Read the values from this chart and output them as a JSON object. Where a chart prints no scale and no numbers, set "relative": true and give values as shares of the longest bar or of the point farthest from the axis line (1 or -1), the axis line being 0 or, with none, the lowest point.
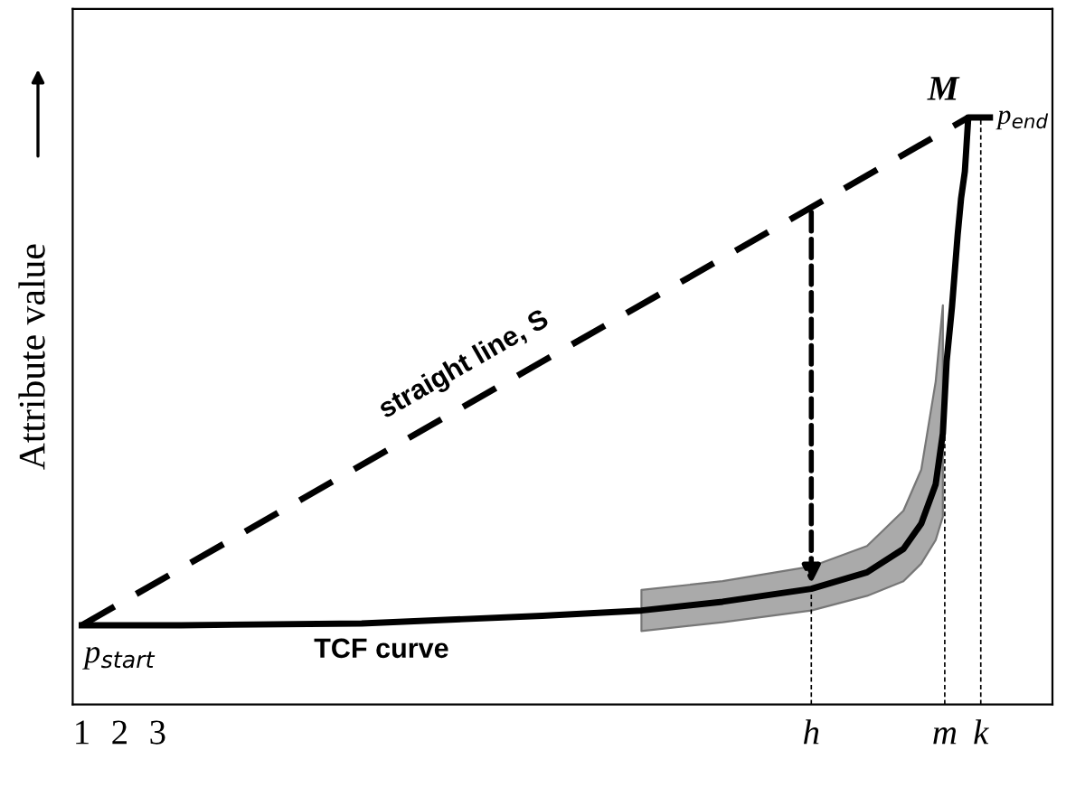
{
  "chart_data": {
    "type": "line",
    "relative": true,
    "ylabel": "Attribute value",
    "xlim": [
      0.76,
      26.6
    ],
    "xticks": [
      1,
      2,
      3,
      {
        "value": 20.24,
        "label": "h"
      },
      {
        "value": 23.76,
        "label": "m"
      },
      {
        "value": 24.71,
        "label": "k"
      }
    ],
    "series": [
      {
        "name": "straight line, S",
        "color": "#000000",
        "line_style": "dashed",
        "x": [
          1,
          24.38
        ],
        "values": [
          0.135,
          1
        ]
      },
      {
        "name": "TCF curve",
        "color": "#000000",
        "line_style": "solid",
        "x": [
          1,
          3.62,
          8.38,
          13.14,
          15.76,
          17.9,
          20.24,
          21.71,
          22.67,
          23.14,
          23.52,
          23.71,
          23.81,
          23.95,
          24.1,
          24.19,
          24.29,
          24.38,
          24.95
        ],
        "values": [
          0.135,
          0.135,
          0.138,
          0.151,
          0.16,
          0.175,
          0.197,
          0.225,
          0.265,
          0.308,
          0.375,
          0.462,
          0.585,
          0.677,
          0.8,
          0.862,
          0.908,
          1,
          1
        ],
        "lower": [
          null,
          null,
          null,
          null,
          0.125,
          0.14,
          0.16,
          0.185,
          0.21,
          0.24,
          0.28,
          0.32,
          null,
          null,
          null,
          null,
          null,
          null,
          null
        ],
        "upper": [
          null,
          null,
          null,
          null,
          0.195,
          0.21,
          0.235,
          0.27,
          0.33,
          0.4,
          0.55,
          0.68,
          null,
          null,
          null,
          null,
          null,
          null,
          null
        ]
      }
    ],
    "ref_lines": [
      {
        "axis": "x",
        "value": 20.24,
        "color": "#000000",
        "line_style": "dashed"
      },
      {
        "axis": "x",
        "value": 23.76,
        "color": "#000000",
        "line_style": "dashed"
      },
      {
        "axis": "x",
        "value": 24.71,
        "color": "#000000",
        "line_style": "dashed"
      }
    ],
    "annotations": [
      {
        "text": "M",
        "x": 24.38,
        "y": 1
      },
      {
        "text": "p$_{end}$",
        "x": 24.95,
        "y": 1
      },
      {
        "text": "p$_{start}$",
        "x": 1,
        "y": 0.135
      }
    ],
    "grid": false,
    "legend": false,
    "marker": "none"
  }
}
